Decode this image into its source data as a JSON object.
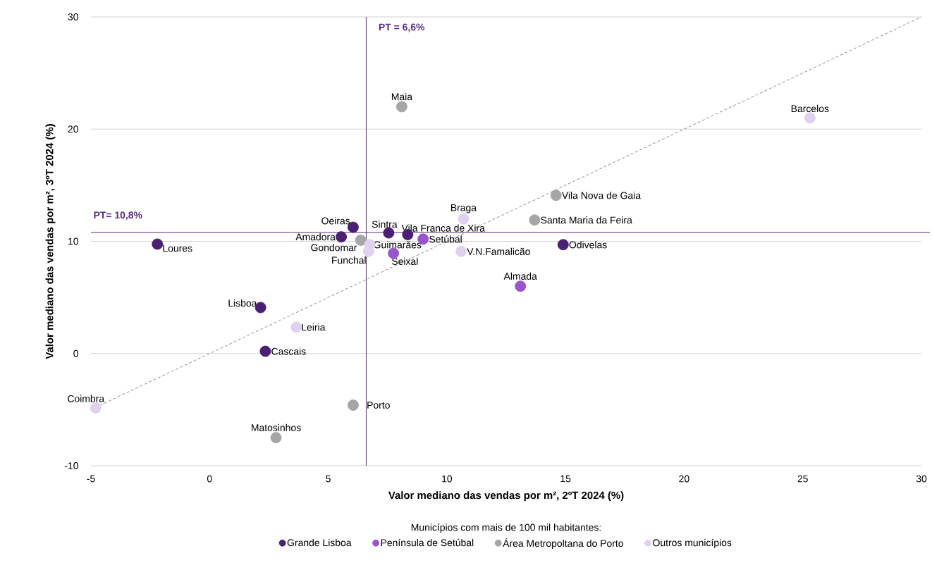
{
  "chart_data": {
    "type": "scatter",
    "xlabel": "Valor mediano das vendas por m², 2ºT 2024 (%)",
    "ylabel": "Valor mediano das vendas por m², 3ºT 2024 (%)",
    "legend_title": "Municípios com mais de 100 mil habitantes:",
    "xlim": [
      -5,
      30
    ],
    "ylim": [
      -10,
      30
    ],
    "xticks": [
      -5,
      0,
      5,
      10,
      15,
      20,
      25,
      30
    ],
    "yticks": [
      -10,
      0,
      10,
      20,
      30
    ],
    "grid": "y",
    "legend": "bottom",
    "marker": "circle",
    "series": [
      {
        "name": "Grande Lisboa",
        "color": "#4b2070",
        "x": [
          -2.2,
          2.15,
          2.35,
          14.9,
          8.35,
          7.55,
          6.05,
          5.55
        ],
        "values": [
          9.75,
          4.1,
          0.2,
          9.7,
          10.6,
          10.75,
          11.25,
          10.4
        ]
      },
      {
        "name": "Península de Setúbal",
        "color": "#9955cc",
        "x": [
          13.1,
          9.0,
          7.75
        ],
        "values": [
          6.0,
          10.2,
          8.93
        ]
      },
      {
        "name": "Área Metropoltana do Porto",
        "color": "#a6a6a6",
        "x": [
          2.8,
          6.05,
          8.1,
          14.6,
          13.7,
          6.37
        ],
        "values": [
          -7.5,
          -4.6,
          22.0,
          14.1,
          11.9,
          10.1
        ]
      },
      {
        "name": "Outros municípios",
        "color": "#e0d2ef",
        "x": [
          3.65,
          -4.8,
          25.3,
          10.7,
          10.6,
          6.75,
          6.7
        ],
        "values": [
          2.35,
          -4.85,
          21.0,
          12.0,
          9.1,
          9.7,
          9.1
        ]
      },
      {
        "type": "line",
        "color": "#7f7f7f",
        "line_style": "dashed",
        "marker": "none",
        "x": [
          -5,
          30
        ],
        "values": [
          -5,
          30
        ]
      }
    ],
    "ref_lines": [
      {
        "axis": "x",
        "value": 6.6,
        "label": "PT = 6,6%",
        "color": "#5b2c83"
      },
      {
        "axis": "y",
        "value": 10.8,
        "label": "PT= 10,8%",
        "color": "#5b2c83"
      }
    ],
    "annotations": [
      {
        "text": "Loures",
        "x": -2.2,
        "y": 9.75
      },
      {
        "text": "Lisboa",
        "x": 2.15,
        "y": 4.1
      },
      {
        "text": "Cascais",
        "x": 2.35,
        "y": 0.2
      },
      {
        "text": "Leiria",
        "x": 3.65,
        "y": 2.35
      },
      {
        "text": "Coimbra",
        "x": -4.8,
        "y": -4.85
      },
      {
        "text": "Matosinhos",
        "x": 2.8,
        "y": -7.5
      },
      {
        "text": "Porto",
        "x": 6.05,
        "y": -4.6
      },
      {
        "text": "Maia",
        "x": 8.1,
        "y": 22.0
      },
      {
        "text": "Barcelos",
        "x": 25.3,
        "y": 21.0
      },
      {
        "text": "Vila Nova de Gaia",
        "x": 14.6,
        "y": 14.1
      },
      {
        "text": "Santa Maria da Feira",
        "x": 13.7,
        "y": 11.9
      },
      {
        "text": "Braga",
        "x": 10.7,
        "y": 12.0
      },
      {
        "text": "Odivelas",
        "x": 14.9,
        "y": 9.7
      },
      {
        "text": "V.N.Famalicão",
        "x": 10.6,
        "y": 9.1
      },
      {
        "text": "Almada",
        "x": 13.1,
        "y": 6.0
      },
      {
        "text": "Setúbal",
        "x": 9.0,
        "y": 10.2
      },
      {
        "text": "Vila Franca de Xira",
        "x": 8.35,
        "y": 10.6
      },
      {
        "text": "Sintra",
        "x": 7.55,
        "y": 10.75
      },
      {
        "text": "Seixal",
        "x": 7.75,
        "y": 8.93
      },
      {
        "text": "Oeiras",
        "x": 6.05,
        "y": 11.25
      },
      {
        "text": "Amadora",
        "x": 5.55,
        "y": 10.4
      },
      {
        "text": "Gondomar",
        "x": 6.37,
        "y": 10.1
      },
      {
        "text": "Guimarães",
        "x": 6.75,
        "y": 9.7
      },
      {
        "text": "Funchal",
        "x": 6.7,
        "y": 9.1
      }
    ]
  }
}
